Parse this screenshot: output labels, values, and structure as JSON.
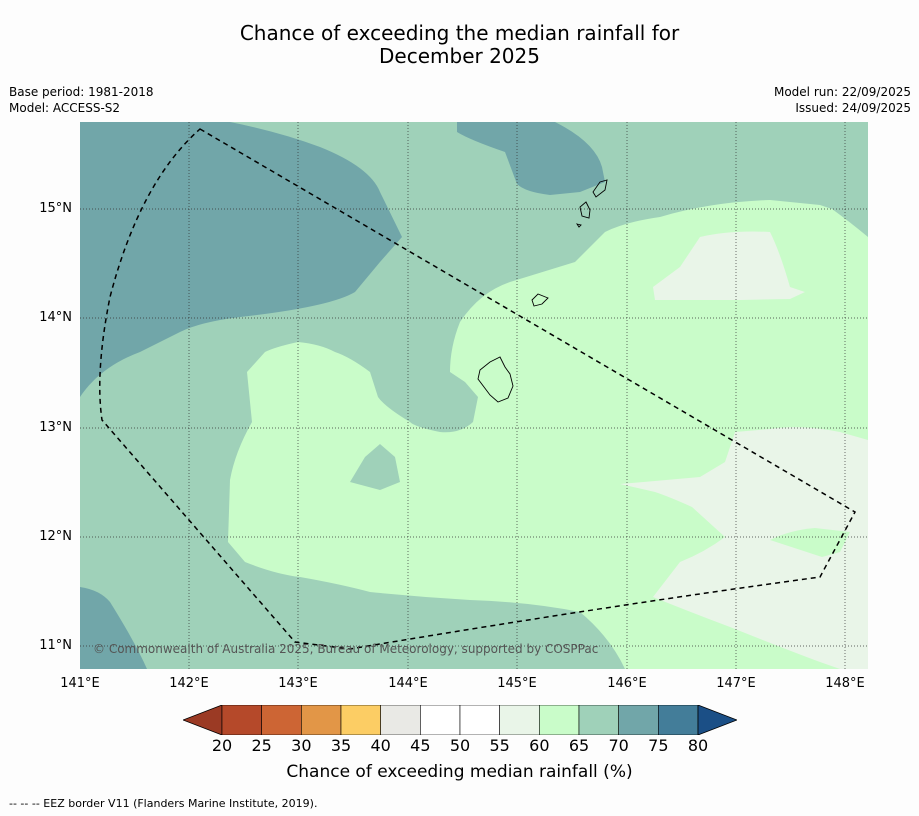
{
  "title_line1": "Chance of exceeding the median rainfall for",
  "title_line2": "December 2025",
  "meta": {
    "base_period": "Base period: 1981-2018",
    "model": "Model: ACCESS-S2",
    "model_run": "Model run: 22/09/2025",
    "issued": "Issued: 24/09/2025"
  },
  "latitudes": [
    "15°N",
    "14°N",
    "13°N",
    "12°N",
    "11°N"
  ],
  "longitudes": [
    "141°E",
    "142°E",
    "143°E",
    "144°E",
    "145°E",
    "146°E",
    "147°E",
    "148°E"
  ],
  "copyright": "© Commonwealth of Australia 2025, Bureau of Meteorology, supported by COSPPac",
  "colorbar": {
    "ticks": [
      "20",
      "25",
      "30",
      "35",
      "40",
      "45",
      "50",
      "55",
      "60",
      "65",
      "70",
      "75",
      "80"
    ],
    "colors": [
      "#b5492a",
      "#cd6534",
      "#e29647",
      "#fccd64",
      "#e9e9e5",
      "#ffffff",
      "#ffffff",
      "#e9f5e8",
      "#c9fcc9",
      "#9fd1b9",
      "#71a6a9",
      "#437d99"
    ],
    "low_arrow_color": "#9b3a24",
    "high_arrow_color": "#1b4f86",
    "label": "Chance of exceeding median rainfall (%)"
  },
  "legend": {
    "eez": "--  --  -- EEZ border V11 (Flanders Marine Institute, 2019)."
  }
}
